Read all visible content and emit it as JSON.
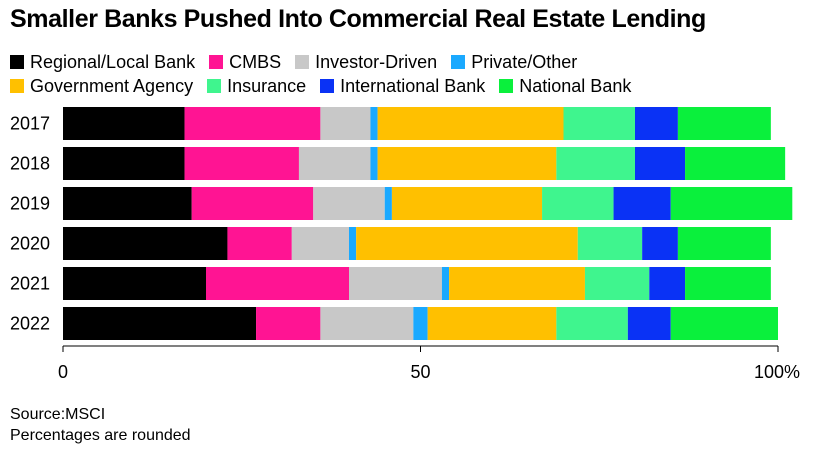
{
  "title": "Smaller Banks Pushed Into Commercial Real Estate Lending",
  "legend_rows": [
    [
      "Regional/Local Bank",
      "CMBS",
      "Investor-Driven",
      "Private/Other"
    ],
    [
      "Government Agency",
      "Insurance",
      "International Bank",
      "National Bank"
    ]
  ],
  "source_lines": [
    "Source:MSCI",
    "Percentages are rounded"
  ],
  "chart_data": {
    "type": "bar",
    "orientation": "horizontal",
    "stacked": true,
    "title": "Smaller Banks Pushed Into Commercial Real Estate Lending",
    "categories": [
      "2017",
      "2018",
      "2019",
      "2020",
      "2021",
      "2022"
    ],
    "xlim": [
      0,
      100
    ],
    "x_ticks": [
      "0",
      "50",
      "100%"
    ],
    "x_tick_values": [
      0,
      50,
      100
    ],
    "grid": false,
    "legend_position": "top",
    "series": [
      {
        "name": "Regional/Local Bank",
        "color": "#000000",
        "values": [
          17,
          17,
          18,
          23,
          20,
          27
        ]
      },
      {
        "name": "CMBS",
        "color": "#ff1493",
        "values": [
          19,
          16,
          17,
          9,
          20,
          9
        ]
      },
      {
        "name": "Investor-Driven",
        "color": "#c8c8c8",
        "values": [
          7,
          10,
          10,
          8,
          13,
          13
        ]
      },
      {
        "name": "Private/Other",
        "color": "#1aa9ff",
        "values": [
          1,
          1,
          1,
          1,
          1,
          2
        ]
      },
      {
        "name": "Government Agency",
        "color": "#ffc000",
        "values": [
          26,
          25,
          21,
          31,
          19,
          18
        ]
      },
      {
        "name": "Insurance",
        "color": "#3ff58e",
        "values": [
          10,
          11,
          10,
          9,
          9,
          10
        ]
      },
      {
        "name": "International Bank",
        "color": "#0a32f5",
        "values": [
          6,
          7,
          8,
          5,
          5,
          6
        ]
      },
      {
        "name": "National Bank",
        "color": "#0af03c",
        "values": [
          13,
          14,
          17,
          13,
          12,
          15
        ]
      }
    ]
  }
}
